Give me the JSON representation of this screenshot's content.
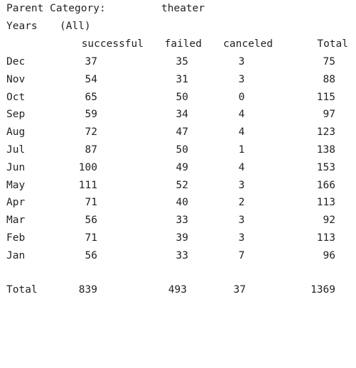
{
  "filters": {
    "parent_category_label": "Parent Category:",
    "parent_category_value": "theater",
    "years_label": "Years",
    "years_value": "(All)"
  },
  "columns": [
    "successful",
    "failed",
    "canceled",
    "Total"
  ],
  "rows": [
    {
      "label": "Dec",
      "successful": "37",
      "failed": "35",
      "canceled": "3",
      "total": "75"
    },
    {
      "label": "Nov",
      "successful": "54",
      "failed": "31",
      "canceled": "3",
      "total": "88"
    },
    {
      "label": "Oct",
      "successful": "65",
      "failed": "50",
      "canceled": "0",
      "total": "115"
    },
    {
      "label": "Sep",
      "successful": "59",
      "failed": "34",
      "canceled": "4",
      "total": "97"
    },
    {
      "label": "Aug",
      "successful": "72",
      "failed": "47",
      "canceled": "4",
      "total": "123"
    },
    {
      "label": "Jul",
      "successful": "87",
      "failed": "50",
      "canceled": "1",
      "total": "138"
    },
    {
      "label": "Jun",
      "successful": "100",
      "failed": "49",
      "canceled": "4",
      "total": "153"
    },
    {
      "label": "May",
      "successful": "111",
      "failed": "52",
      "canceled": "3",
      "total": "166"
    },
    {
      "label": "Apr",
      "successful": "71",
      "failed": "40",
      "canceled": "2",
      "total": "113"
    },
    {
      "label": "Mar",
      "successful": "56",
      "failed": "33",
      "canceled": "3",
      "total": "92"
    },
    {
      "label": "Feb",
      "successful": "71",
      "failed": "39",
      "canceled": "3",
      "total": "113"
    },
    {
      "label": "Jan",
      "successful": "56",
      "failed": "33",
      "canceled": "7",
      "total": "96"
    }
  ],
  "totals": {
    "label": "Total",
    "successful": "839",
    "failed": "493",
    "canceled": "37",
    "total": "1369"
  }
}
